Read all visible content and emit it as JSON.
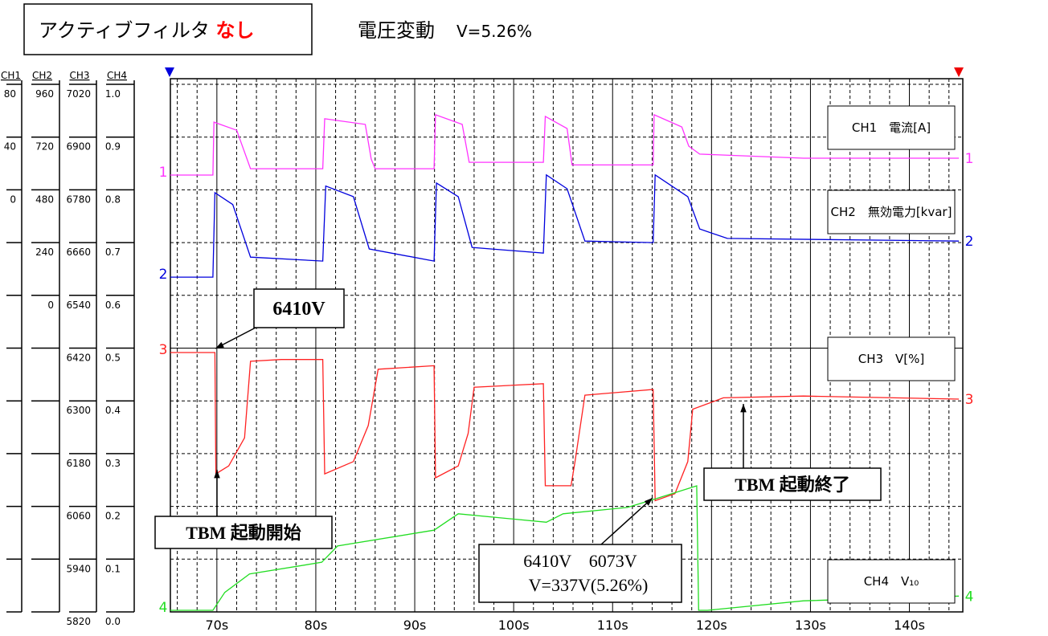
{
  "chart_data": {
    "type": "line",
    "title": "アクティブフィルタ",
    "title_emphasis": "なし",
    "subtitle": "電圧変動",
    "subtitle_value": "V=5.26%",
    "xlim": [
      65.3,
      145.4
    ],
    "xticks": [
      {
        "value": 70,
        "label": "70s"
      },
      {
        "value": 80,
        "label": "80s"
      },
      {
        "value": 90,
        "label": "90s"
      },
      {
        "value": 100,
        "label": "100s"
      },
      {
        "value": 110,
        "label": "110s"
      },
      {
        "value": 120,
        "label": "120s"
      },
      {
        "value": 130,
        "label": "130s"
      },
      {
        "value": 140,
        "label": "140s"
      }
    ],
    "grid": true,
    "axes": [
      {
        "name": "CH1",
        "ylim": [
          -320,
          80
        ],
        "yticks": [
          0,
          40,
          80
        ]
      },
      {
        "name": "CH2",
        "ylim": [
          -1440,
          960
        ],
        "yticks": [
          0,
          240,
          480,
          720,
          960
        ]
      },
      {
        "name": "CH3",
        "ylim": [
          5820,
          7020
        ],
        "yticks": [
          5820,
          5940,
          6060,
          6180,
          6300,
          6420,
          6540,
          6660,
          6780,
          6900,
          7020
        ]
      },
      {
        "name": "CH4",
        "ylim": [
          0,
          1
        ],
        "yticks": [
          {
            "value": 0,
            "label": "0.0"
          },
          0.1,
          0.2,
          0.3,
          0.4,
          0.5,
          0.6,
          0.7,
          0.8,
          0.9,
          {
            "value": 1,
            "label": "1.0"
          }
        ]
      }
    ],
    "series": [
      {
        "name": "CH1　電流[A]",
        "marker": "1",
        "axis": 0,
        "color": "#ff33ff",
        "x": [
          65.3,
          69.6,
          69.7,
          72.0,
          73.4,
          80.7,
          80.9,
          85.0,
          85.6,
          86.0,
          91.95,
          92.1,
          94.8,
          95.5,
          103.0,
          103.2,
          105.4,
          105.9,
          114.1,
          114.2,
          117.0,
          117.7,
          118.8,
          129.3,
          145.0
        ],
        "values": [
          11.2,
          11.2,
          51.3,
          45.2,
          16.0,
          16.0,
          53.9,
          49.6,
          23.3,
          16.0,
          16.0,
          56.9,
          49.6,
          20.9,
          20.9,
          55.7,
          46.5,
          18.9,
          18.9,
          56.9,
          47.7,
          33.1,
          27.1,
          24.0,
          24.0
        ]
      },
      {
        "name": "CH2　無効電力[kvar]",
        "marker": "2",
        "axis": 1,
        "color": "#0000dd",
        "x": [
          65.3,
          69.6,
          69.8,
          71.6,
          73.4,
          80.7,
          81.0,
          83.8,
          85.4,
          91.95,
          92.2,
          94.4,
          95.8,
          103.0,
          103.3,
          105.4,
          107.2,
          114.1,
          114.3,
          117.6,
          118.8,
          121.6,
          145.0
        ],
        "values": [
          83,
          83,
          467,
          413,
          174,
          156,
          497,
          449,
          211,
          156,
          511,
          449,
          218,
          192,
          548,
          485,
          247,
          240,
          548,
          449,
          302,
          259,
          247
        ]
      },
      {
        "name": "CH3　V[%]",
        "marker": "3",
        "axis": 2,
        "color": "#ff2222",
        "x": [
          65.3,
          69.8,
          69.9,
          71.2,
          72.8,
          73.4,
          76.5,
          80.7,
          80.9,
          83.8,
          85.3,
          86.3,
          91.95,
          92.1,
          94.4,
          95.4,
          96.0,
          103.0,
          103.2,
          105.8,
          106.2,
          107.2,
          114.1,
          114.3,
          116.3,
          117.6,
          118.1,
          121.2,
          129.3,
          145.0
        ],
        "values": [
          6410,
          6410,
          6134,
          6152,
          6216,
          6390,
          6394,
          6394,
          6134,
          6162,
          6244,
          6372,
          6380,
          6125,
          6152,
          6226,
          6331,
          6339,
          6107,
          6107,
          6162,
          6313,
          6326,
          6073,
          6089,
          6162,
          6281,
          6307,
          6311,
          6304
        ]
      },
      {
        "name": "CH4　V₁₀",
        "marker": "4",
        "axis": 3,
        "color": "#22dd22",
        "x": [
          65.3,
          69.6,
          70.8,
          73.3,
          80.6,
          82.2,
          91.95,
          94.4,
          103.3,
          105.0,
          111.5,
          114.1,
          118.5,
          118.7,
          119.6,
          129.3,
          145.0
        ],
        "values": [
          0.003,
          0.003,
          0.037,
          0.072,
          0.094,
          0.125,
          0.155,
          0.186,
          0.17,
          0.186,
          0.198,
          0.213,
          0.239,
          0.003,
          0.003,
          0.021,
          0.03
        ]
      }
    ],
    "annotations": [
      {
        "text": "6410V"
      },
      {
        "text": "TBM 起動開始"
      },
      {
        "lines": [
          "6410V　6073V",
          "V=337V(5.26%)"
        ]
      },
      {
        "text": "TBM 起動終了"
      }
    ]
  }
}
